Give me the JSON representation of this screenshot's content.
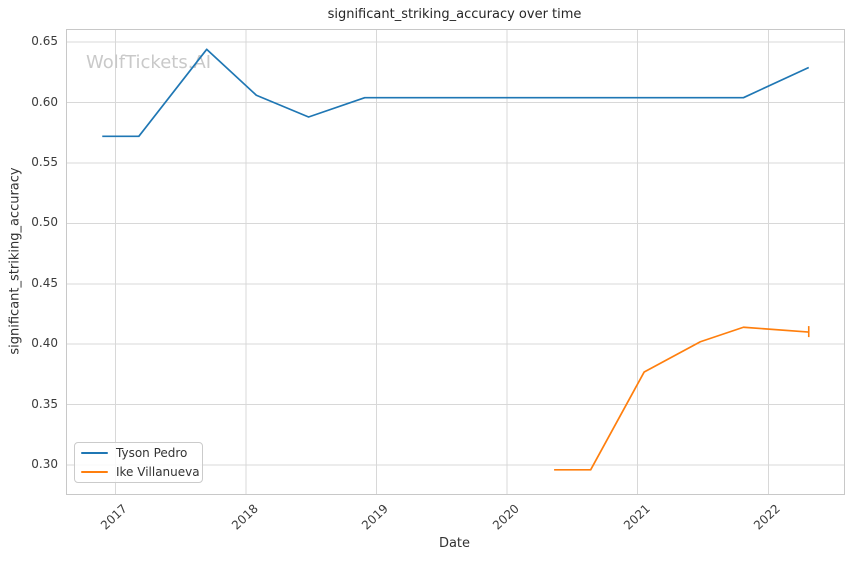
{
  "watermark": "WolfTickets.AI",
  "colors": {
    "series_blue": "#1f77b4",
    "series_orange": "#ff7f0e",
    "grid": "#d8d8d8",
    "spine": "#c8c8c8",
    "tick_text": "#3b3b3b",
    "watermark_text": "#c9c9c9"
  },
  "chart_data": {
    "type": "line",
    "title": "significant_striking_accuracy over time",
    "xlabel": "Date",
    "ylabel": "significant_striking_accuracy",
    "xlim": [
      2016.63,
      2022.58
    ],
    "ylim": [
      0.276,
      0.66
    ],
    "grid": true,
    "legend_position": "lower-left",
    "x_ticks": [
      2017,
      2018,
      2019,
      2020,
      2021,
      2022
    ],
    "x_tick_labels": [
      "2017",
      "2018",
      "2019",
      "2020",
      "2021",
      "2022"
    ],
    "y_ticks": [
      0.3,
      0.35,
      0.4,
      0.45,
      0.5,
      0.55,
      0.6,
      0.65
    ],
    "y_tick_labels": [
      "0.30",
      "0.35",
      "0.40",
      "0.45",
      "0.50",
      "0.55",
      "0.60",
      "0.65"
    ],
    "series": [
      {
        "name": "Tyson Pedro",
        "color": "#1f77b4",
        "x": [
          2016.9,
          2017.18,
          2017.7,
          2018.08,
          2018.48,
          2018.91,
          2021.81,
          2022.31
        ],
        "y": [
          0.572,
          0.572,
          0.644,
          0.606,
          0.588,
          0.604,
          0.604,
          0.629
        ],
        "end_cap": false
      },
      {
        "name": "Ike Villanueva",
        "color": "#ff7f0e",
        "x": [
          2020.36,
          2020.64,
          2021.05,
          2021.48,
          2021.81,
          2022.31
        ],
        "y": [
          0.296,
          0.296,
          0.377,
          0.402,
          0.414,
          0.41
        ],
        "end_cap": true
      }
    ]
  }
}
